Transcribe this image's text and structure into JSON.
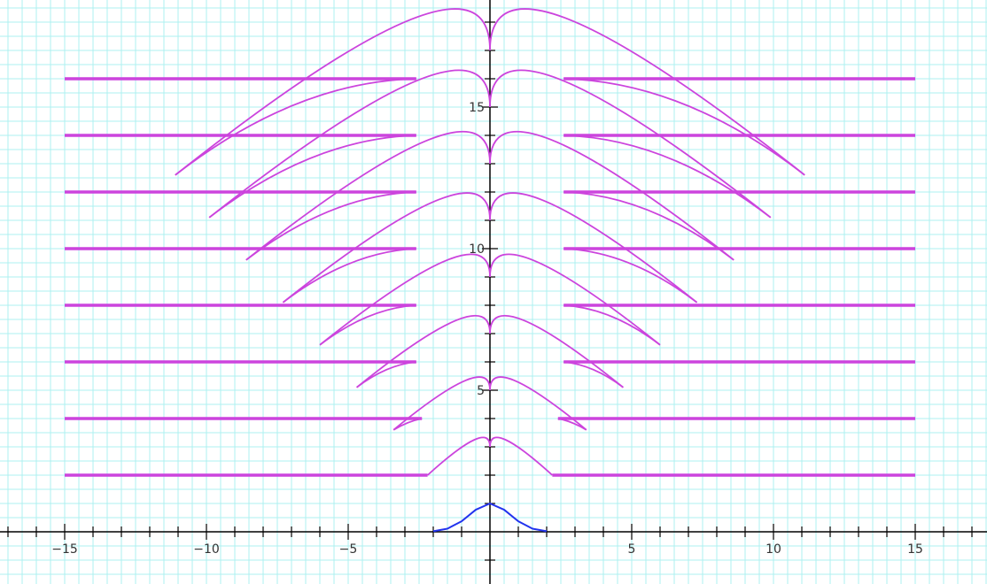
{
  "chart_data": {
    "type": "line",
    "xlim": [
      -17.2,
      17.5
    ],
    "ylim": [
      -1.8,
      18.8
    ],
    "grid": true,
    "x_tick_labels": [
      "−15",
      "−10",
      "−5",
      "5",
      "10",
      "15"
    ],
    "x_tick_values": [
      -15,
      -10,
      -5,
      5,
      10,
      15
    ],
    "y_tick_labels": [
      "5",
      "10",
      "15"
    ],
    "y_tick_values": [
      5,
      10,
      15
    ],
    "colors": {
      "grid": "#aef1f1",
      "axis": "#000000",
      "family": "#cc44dd",
      "base": "#2233ee"
    },
    "series": [
      {
        "kind": "base_curve",
        "x": [
          -2.0,
          -1.5,
          -1.0,
          -0.5,
          0.0,
          0.5,
          1.0,
          1.5,
          2.0
        ],
        "y": [
          0.02,
          0.11,
          0.37,
          0.78,
          1.0,
          0.78,
          0.37,
          0.11,
          0.02
        ]
      },
      {
        "kind": "family_curves",
        "levels": [
          {
            "level": 2,
            "line_inner": 2.2,
            "arc_inner": 2.2,
            "arc_outer_x": 2.2,
            "arc_outer_y": 2.0
          },
          {
            "level": 4,
            "line_inner": 2.4,
            "arc_inner": 2.4,
            "arc_outer_x": 3.4,
            "arc_outer_y": 3.6
          },
          {
            "level": 6,
            "line_inner": 2.6,
            "arc_inner": 2.6,
            "arc_outer_x": 4.7,
            "arc_outer_y": 5.1
          },
          {
            "level": 8,
            "line_inner": 2.6,
            "arc_inner": 2.6,
            "arc_outer_x": 6.0,
            "arc_outer_y": 6.6
          },
          {
            "level": 10,
            "line_inner": 2.6,
            "arc_inner": 2.6,
            "arc_outer_x": 7.3,
            "arc_outer_y": 8.1
          },
          {
            "level": 12,
            "line_inner": 2.6,
            "arc_inner": 2.6,
            "arc_outer_x": 8.6,
            "arc_outer_y": 9.6
          },
          {
            "level": 14,
            "line_inner": 2.6,
            "arc_inner": 2.6,
            "arc_outer_x": 9.9,
            "arc_outer_y": 11.1
          },
          {
            "level": 16,
            "line_inner": 2.6,
            "arc_inner": 2.6,
            "arc_outer_x": 11.1,
            "arc_outer_y": 12.6
          }
        ],
        "line_outer": 15,
        "peak_offset": 1.0
      }
    ]
  }
}
